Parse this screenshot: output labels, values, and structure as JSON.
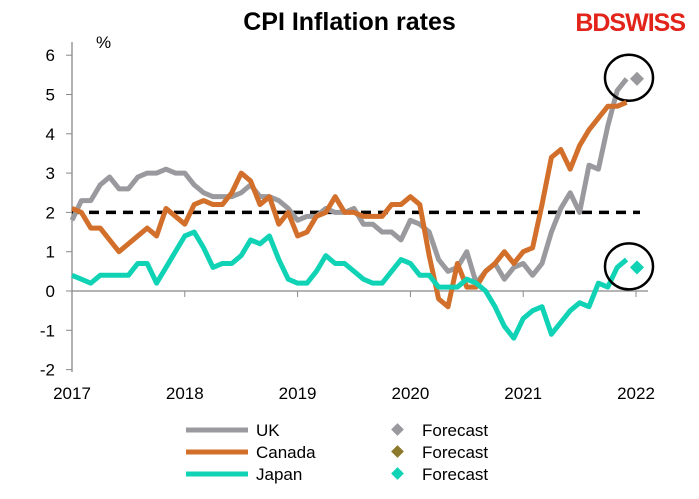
{
  "header": {
    "title": "CPI Inflation rates",
    "logo": "BDSWISS"
  },
  "chart_data": {
    "type": "line",
    "title": "CPI Inflation rates",
    "ylabel": "%",
    "ylim": [
      -2,
      6
    ],
    "yticks": [
      "-2",
      "-1",
      "0",
      "1",
      "2",
      "3",
      "4",
      "5",
      "6"
    ],
    "xlim": [
      2017,
      2022.1
    ],
    "xticks": [
      "2017",
      "2018",
      "2019",
      "2020",
      "2021",
      "2022"
    ],
    "reference_line": {
      "value": 2,
      "style": "dashed"
    },
    "start": 2017,
    "series": [
      {
        "name": "UK",
        "color": "#9a9a9e",
        "values": [
          1.8,
          2.3,
          2.3,
          2.7,
          2.9,
          2.6,
          2.6,
          2.9,
          3.0,
          3.0,
          3.1,
          3.0,
          3.0,
          2.7,
          2.5,
          2.4,
          2.4,
          2.4,
          2.5,
          2.7,
          2.4,
          2.4,
          2.3,
          2.1,
          1.8,
          1.9,
          1.9,
          2.1,
          2.0,
          2.0,
          2.1,
          1.7,
          1.7,
          1.5,
          1.5,
          1.3,
          1.8,
          1.7,
          1.5,
          0.8,
          0.5,
          0.6,
          1.0,
          0.2,
          0.5,
          0.7,
          0.3,
          0.6,
          0.7,
          0.4,
          0.7,
          1.5,
          2.1,
          2.5,
          2.0,
          3.2,
          3.1,
          4.2,
          5.1,
          5.4
        ],
        "forecast": 5.4
      },
      {
        "name": "Canada",
        "color": "#d2702b",
        "values": [
          2.1,
          2.0,
          1.6,
          1.6,
          1.3,
          1.0,
          1.2,
          1.4,
          1.6,
          1.4,
          2.1,
          1.9,
          1.7,
          2.2,
          2.3,
          2.2,
          2.2,
          2.5,
          3.0,
          2.8,
          2.2,
          2.4,
          1.7,
          2.0,
          1.4,
          1.5,
          1.9,
          2.0,
          2.4,
          2.0,
          2.0,
          1.9,
          1.9,
          1.9,
          2.2,
          2.2,
          2.4,
          2.2,
          0.9,
          -0.2,
          -0.4,
          0.7,
          0.1,
          0.1,
          0.5,
          0.7,
          1.0,
          0.7,
          1.0,
          1.1,
          2.2,
          3.4,
          3.6,
          3.1,
          3.7,
          4.1,
          4.4,
          4.7,
          4.7,
          4.8
        ],
        "forecast": null
      },
      {
        "name": "Japan",
        "color": "#0fd3b4",
        "values": [
          0.4,
          0.3,
          0.2,
          0.4,
          0.4,
          0.4,
          0.4,
          0.7,
          0.7,
          0.2,
          0.6,
          1.0,
          1.4,
          1.5,
          1.1,
          0.6,
          0.7,
          0.7,
          0.9,
          1.3,
          1.2,
          1.4,
          0.8,
          0.3,
          0.2,
          0.2,
          0.5,
          0.9,
          0.7,
          0.7,
          0.5,
          0.3,
          0.2,
          0.2,
          0.5,
          0.8,
          0.7,
          0.4,
          0.4,
          0.1,
          0.1,
          0.1,
          0.3,
          0.2,
          0.0,
          -0.4,
          -0.9,
          -1.2,
          -0.7,
          -0.5,
          -0.4,
          -1.1,
          -0.8,
          -0.5,
          -0.3,
          -0.4,
          0.2,
          0.1,
          0.6,
          0.8
        ],
        "forecast": 0.6
      }
    ],
    "legend": {
      "placement": "bottom",
      "entries": [
        "UK",
        "Canada",
        "Japan"
      ],
      "forecast_entries": [
        {
          "label": "Forecast",
          "color": "#9a9a9e"
        },
        {
          "label": "Forecast",
          "color": "#8c7a2c"
        },
        {
          "label": "Forecast",
          "color": "#0fd3b4"
        }
      ]
    }
  }
}
